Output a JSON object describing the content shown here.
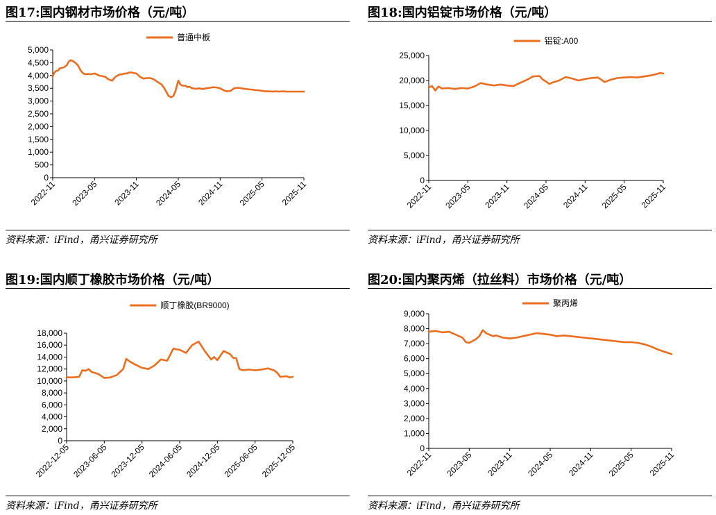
{
  "series_color": "#ED6D1F",
  "chart_data": [
    {
      "type": "line",
      "title": "图17:国内钢材市场价格（元/吨）",
      "legend": "普通中板",
      "legend_position": "top-center",
      "source": "资料来源：iFind，甬兴证券研究所",
      "ylim": [
        0,
        5000
      ],
      "yticks": [
        0,
        500,
        1000,
        1500,
        2000,
        2500,
        3000,
        3500,
        4000,
        4500,
        5000
      ],
      "ytick_labels": [
        "0",
        "500",
        "1,000",
        "1,500",
        "2,000",
        "2,500",
        "3,000",
        "3,500",
        "4,000",
        "4,500",
        "5,000"
      ],
      "xlabels": [
        "2022-11",
        "2023-05",
        "2023-11",
        "2024-05",
        "2024-11",
        "2025-05",
        "2025-11"
      ],
      "x": [
        0,
        0.2,
        0.5,
        0.8,
        1,
        1.3,
        1.6,
        2,
        2.3,
        2.6,
        3,
        3.3,
        3.6,
        4,
        4.3,
        4.6,
        5,
        5.5,
        6,
        6.3,
        6.6,
        7,
        7.5,
        8,
        8.5,
        9,
        9.3,
        9.6,
        10,
        10.3,
        10.6,
        11,
        11.3,
        11.6,
        12,
        12.5,
        13,
        13.5,
        14,
        14.5,
        15,
        15.3,
        15.6,
        16,
        16.3,
        16.6,
        17,
        17.3,
        17.6,
        18,
        18.3,
        18.6,
        19,
        19.3,
        19.6,
        20,
        20.5,
        21,
        21.5,
        22,
        22.5,
        23,
        23.5,
        24,
        24.5,
        25,
        25.5,
        26,
        26.5,
        27,
        27.5,
        28,
        28.5,
        29,
        29.5,
        30,
        30.5,
        31,
        31.5,
        32,
        32.5,
        33,
        33.5,
        34,
        34.5,
        35,
        35.5,
        36
      ],
      "values": [
        3950,
        4100,
        4180,
        4200,
        4280,
        4300,
        4320,
        4400,
        4550,
        4600,
        4550,
        4480,
        4400,
        4200,
        4100,
        4050,
        4060,
        4050,
        4080,
        4050,
        4000,
        3980,
        3950,
        3850,
        3800,
        3950,
        4000,
        4040,
        4050,
        4080,
        4080,
        4120,
        4120,
        4100,
        4080,
        3950,
        3880,
        3900,
        3900,
        3850,
        3750,
        3700,
        3650,
        3500,
        3350,
        3200,
        3150,
        3200,
        3400,
        3800,
        3650,
        3600,
        3600,
        3550,
        3560,
        3500,
        3480,
        3500,
        3470,
        3500,
        3520,
        3540,
        3530,
        3500,
        3420,
        3380,
        3400,
        3500,
        3520,
        3500,
        3480,
        3460,
        3450,
        3430,
        3420,
        3400,
        3380,
        3380,
        3370,
        3380,
        3370,
        3380,
        3370,
        3370,
        3370,
        3370,
        3370,
        3370
      ]
    },
    {
      "type": "line",
      "title": "图18:国内铝锭市场价格（元/吨）",
      "legend": "铝锭:A00",
      "legend_position": "top-center",
      "source": "资料来源：iFind，甬兴证券研究所",
      "ylim": [
        0,
        25000
      ],
      "yticks": [
        0,
        5000,
        10000,
        15000,
        20000,
        25000
      ],
      "ytick_labels": [
        "0",
        "5,000",
        "10,000",
        "15,000",
        "20,000",
        "25,000"
      ],
      "xlabels": [
        "2022-11",
        "2023-05",
        "2023-11",
        "2024-05",
        "2024-11",
        "2025-05",
        "2025-11"
      ],
      "x": [
        0,
        0.5,
        1,
        1.5,
        2,
        3,
        4,
        5,
        6,
        7,
        8,
        9,
        10,
        11,
        12,
        13,
        14,
        15,
        16,
        17,
        17.5,
        18,
        18.5,
        19,
        20,
        21,
        22,
        23,
        24,
        25,
        26,
        27,
        28,
        29,
        30,
        31,
        32,
        33,
        34,
        35,
        35.5,
        36
      ],
      "values": [
        18600,
        18900,
        18000,
        18800,
        18400,
        18500,
        18300,
        18500,
        18400,
        18800,
        19500,
        19200,
        19000,
        19200,
        19000,
        18900,
        19500,
        20100,
        20800,
        20900,
        20200,
        19800,
        19300,
        19600,
        20000,
        20700,
        20400,
        20000,
        20300,
        20500,
        20600,
        19700,
        20200,
        20500,
        20600,
        20700,
        20600,
        20800,
        21000,
        21300,
        21500,
        21400
      ]
    },
    {
      "type": "line",
      "title": "图19:国内顺丁橡胶市场价格（元/吨）",
      "legend": "顺丁橡胶(BR9000)",
      "legend_position": "top-center",
      "source": "资料来源：iFind，甬兴证券研究所",
      "ylim": [
        0,
        18000
      ],
      "yticks": [
        0,
        2000,
        4000,
        6000,
        8000,
        10000,
        12000,
        14000,
        16000,
        18000
      ],
      "ytick_labels": [
        "0",
        "2,000",
        "4,000",
        "6,000",
        "8,000",
        "10,000",
        "12,000",
        "14,000",
        "16,000",
        "18,000"
      ],
      "xlabels": [
        "2022-12-05",
        "2023-06-05",
        "2023-12-05",
        "2024-06-05",
        "2024-12-05",
        "2025-06-05",
        "2025-12-05"
      ],
      "x": [
        0,
        1,
        2,
        2.5,
        3,
        3.5,
        4,
        5,
        6,
        7,
        8,
        8.5,
        9,
        9.5,
        10,
        11,
        12,
        13,
        14,
        15,
        16,
        17,
        18,
        19,
        20,
        21,
        22,
        23,
        23.5,
        24,
        25,
        26,
        26.5,
        27,
        27.5,
        28,
        29,
        30,
        31,
        32,
        33,
        33.5,
        34,
        35,
        35.5,
        36
      ],
      "values": [
        10600,
        10600,
        10700,
        11800,
        11700,
        12000,
        11500,
        11200,
        10500,
        10600,
        11000,
        11500,
        12000,
        13700,
        13300,
        12700,
        12200,
        12000,
        12600,
        13600,
        13400,
        15400,
        15200,
        14700,
        16000,
        16600,
        15000,
        13600,
        14000,
        13500,
        15000,
        14500,
        13900,
        13800,
        12000,
        11800,
        11900,
        11800,
        11900,
        12100,
        11800,
        11400,
        10700,
        10800,
        10600,
        10700
      ]
    },
    {
      "type": "line",
      "title": "图20:国内聚丙烯（拉丝料）市场价格（元/吨）",
      "legend": "聚丙烯",
      "legend_position": "top-center",
      "source": "资料来源：iFind，甬兴证券研究所",
      "ylim": [
        0,
        9000
      ],
      "yticks": [
        0,
        1000,
        2000,
        3000,
        4000,
        5000,
        6000,
        7000,
        8000,
        9000
      ],
      "ytick_labels": [
        "0",
        "1,000",
        "2,000",
        "3,000",
        "4,000",
        "5,000",
        "6,000",
        "7,000",
        "8,000",
        "9,000"
      ],
      "xlabels": [
        "2022-11",
        "2023-05",
        "2023-11",
        "2024-05",
        "2024-11",
        "2025-05",
        "2025-11"
      ],
      "x": [
        0,
        1,
        2,
        3,
        4,
        5,
        5.5,
        6,
        7,
        7.5,
        8,
        8.5,
        9,
        9.5,
        10,
        11,
        12,
        13,
        14,
        15,
        16,
        17,
        18,
        19,
        20,
        21,
        22,
        23,
        24,
        25,
        26,
        27,
        28,
        29,
        30,
        31,
        32,
        33,
        34,
        35,
        36
      ],
      "values": [
        7800,
        7850,
        7750,
        7800,
        7600,
        7400,
        7100,
        7050,
        7300,
        7500,
        7900,
        7700,
        7600,
        7500,
        7550,
        7400,
        7350,
        7400,
        7500,
        7600,
        7700,
        7650,
        7600,
        7500,
        7550,
        7500,
        7450,
        7400,
        7350,
        7300,
        7250,
        7200,
        7150,
        7100,
        7100,
        7050,
        6950,
        6800,
        6600,
        6450,
        6300
      ]
    }
  ]
}
